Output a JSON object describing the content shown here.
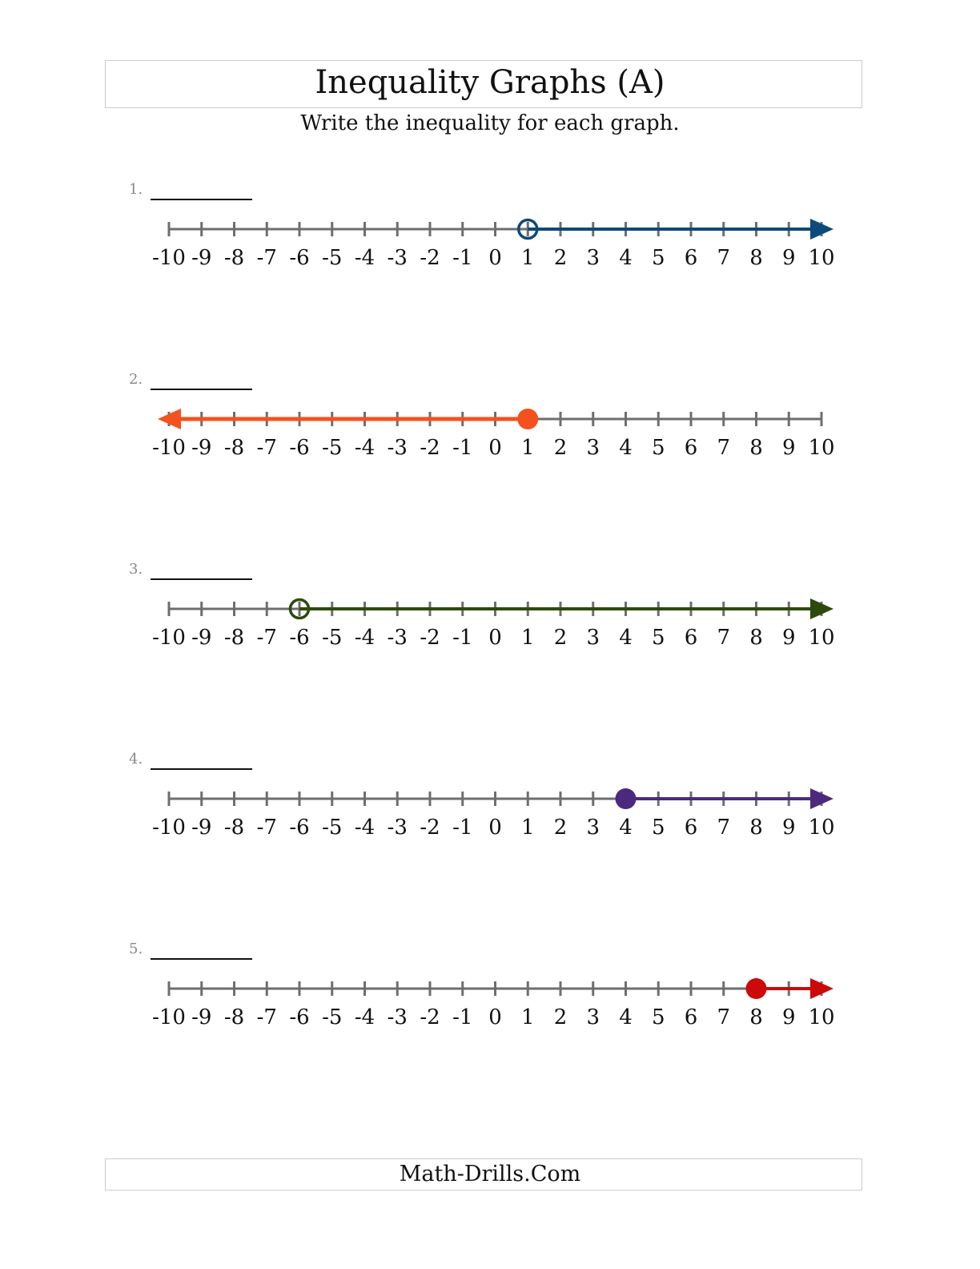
{
  "header": {
    "title": "Inequality Graphs (A)",
    "instructions": "Write the inequality for each graph."
  },
  "footer": {
    "text": "Math-Drills.Com"
  },
  "axis": {
    "min": -10,
    "max": 10,
    "tick_labels": [
      "-10",
      "-9",
      "-8",
      "-7",
      "-6",
      "-5",
      "-4",
      "-3",
      "-2",
      "-1",
      "0",
      "1",
      "2",
      "3",
      "4",
      "5",
      "6",
      "7",
      "8",
      "9",
      "10"
    ],
    "axis_color": "#6e6e6e"
  },
  "problems": [
    {
      "number": "1.",
      "point": 1,
      "closed": false,
      "direction": "right",
      "color": "#0b4a7a"
    },
    {
      "number": "2.",
      "point": 1,
      "closed": true,
      "direction": "left",
      "color": "#f4511e"
    },
    {
      "number": "3.",
      "point": -6,
      "closed": false,
      "direction": "right",
      "color": "#2d4a0c"
    },
    {
      "number": "4.",
      "point": 4,
      "closed": true,
      "direction": "right",
      "color": "#4b2a7e"
    },
    {
      "number": "5.",
      "point": 8,
      "closed": true,
      "direction": "right",
      "color": "#cc0a0a"
    }
  ]
}
